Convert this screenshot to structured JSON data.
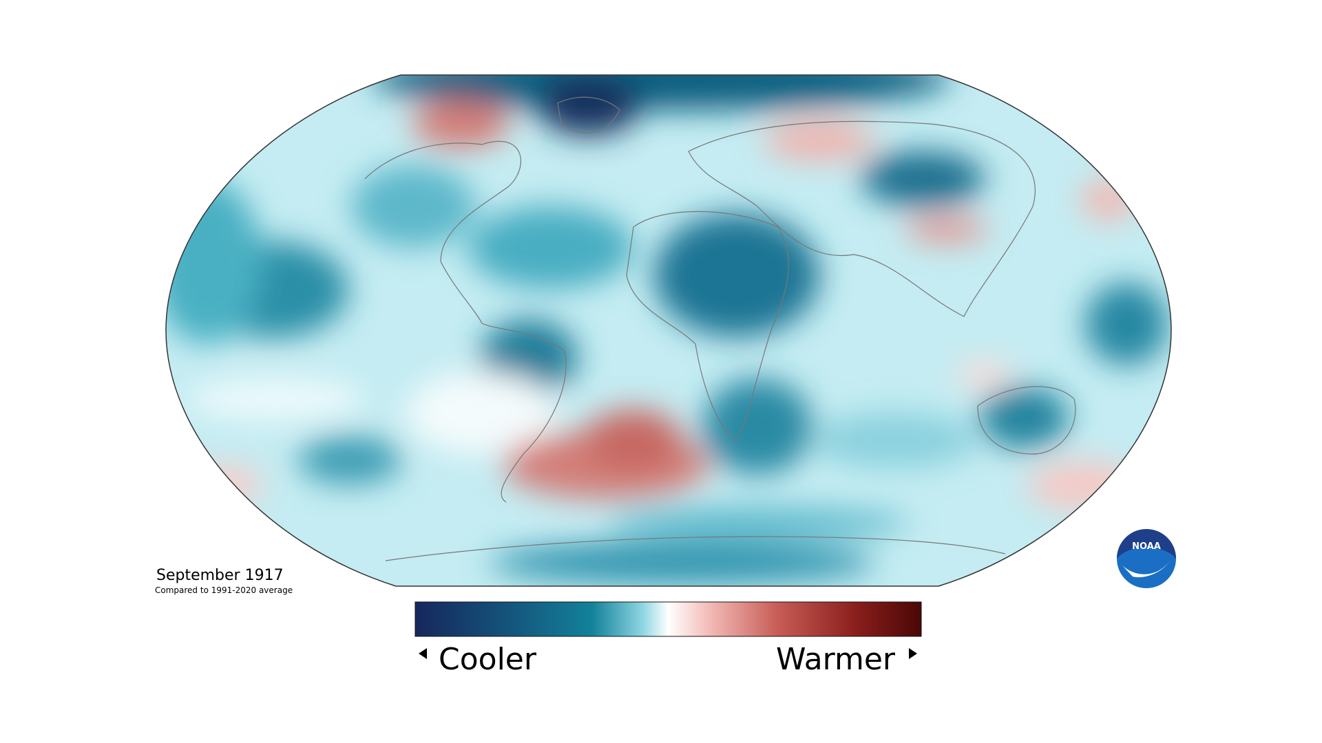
{
  "title": "September 1917",
  "subtitle": "Compared to 1991-2020 average",
  "legend": {
    "low": "Cooler",
    "high": "Warmer"
  },
  "logo": "NOAA"
}
